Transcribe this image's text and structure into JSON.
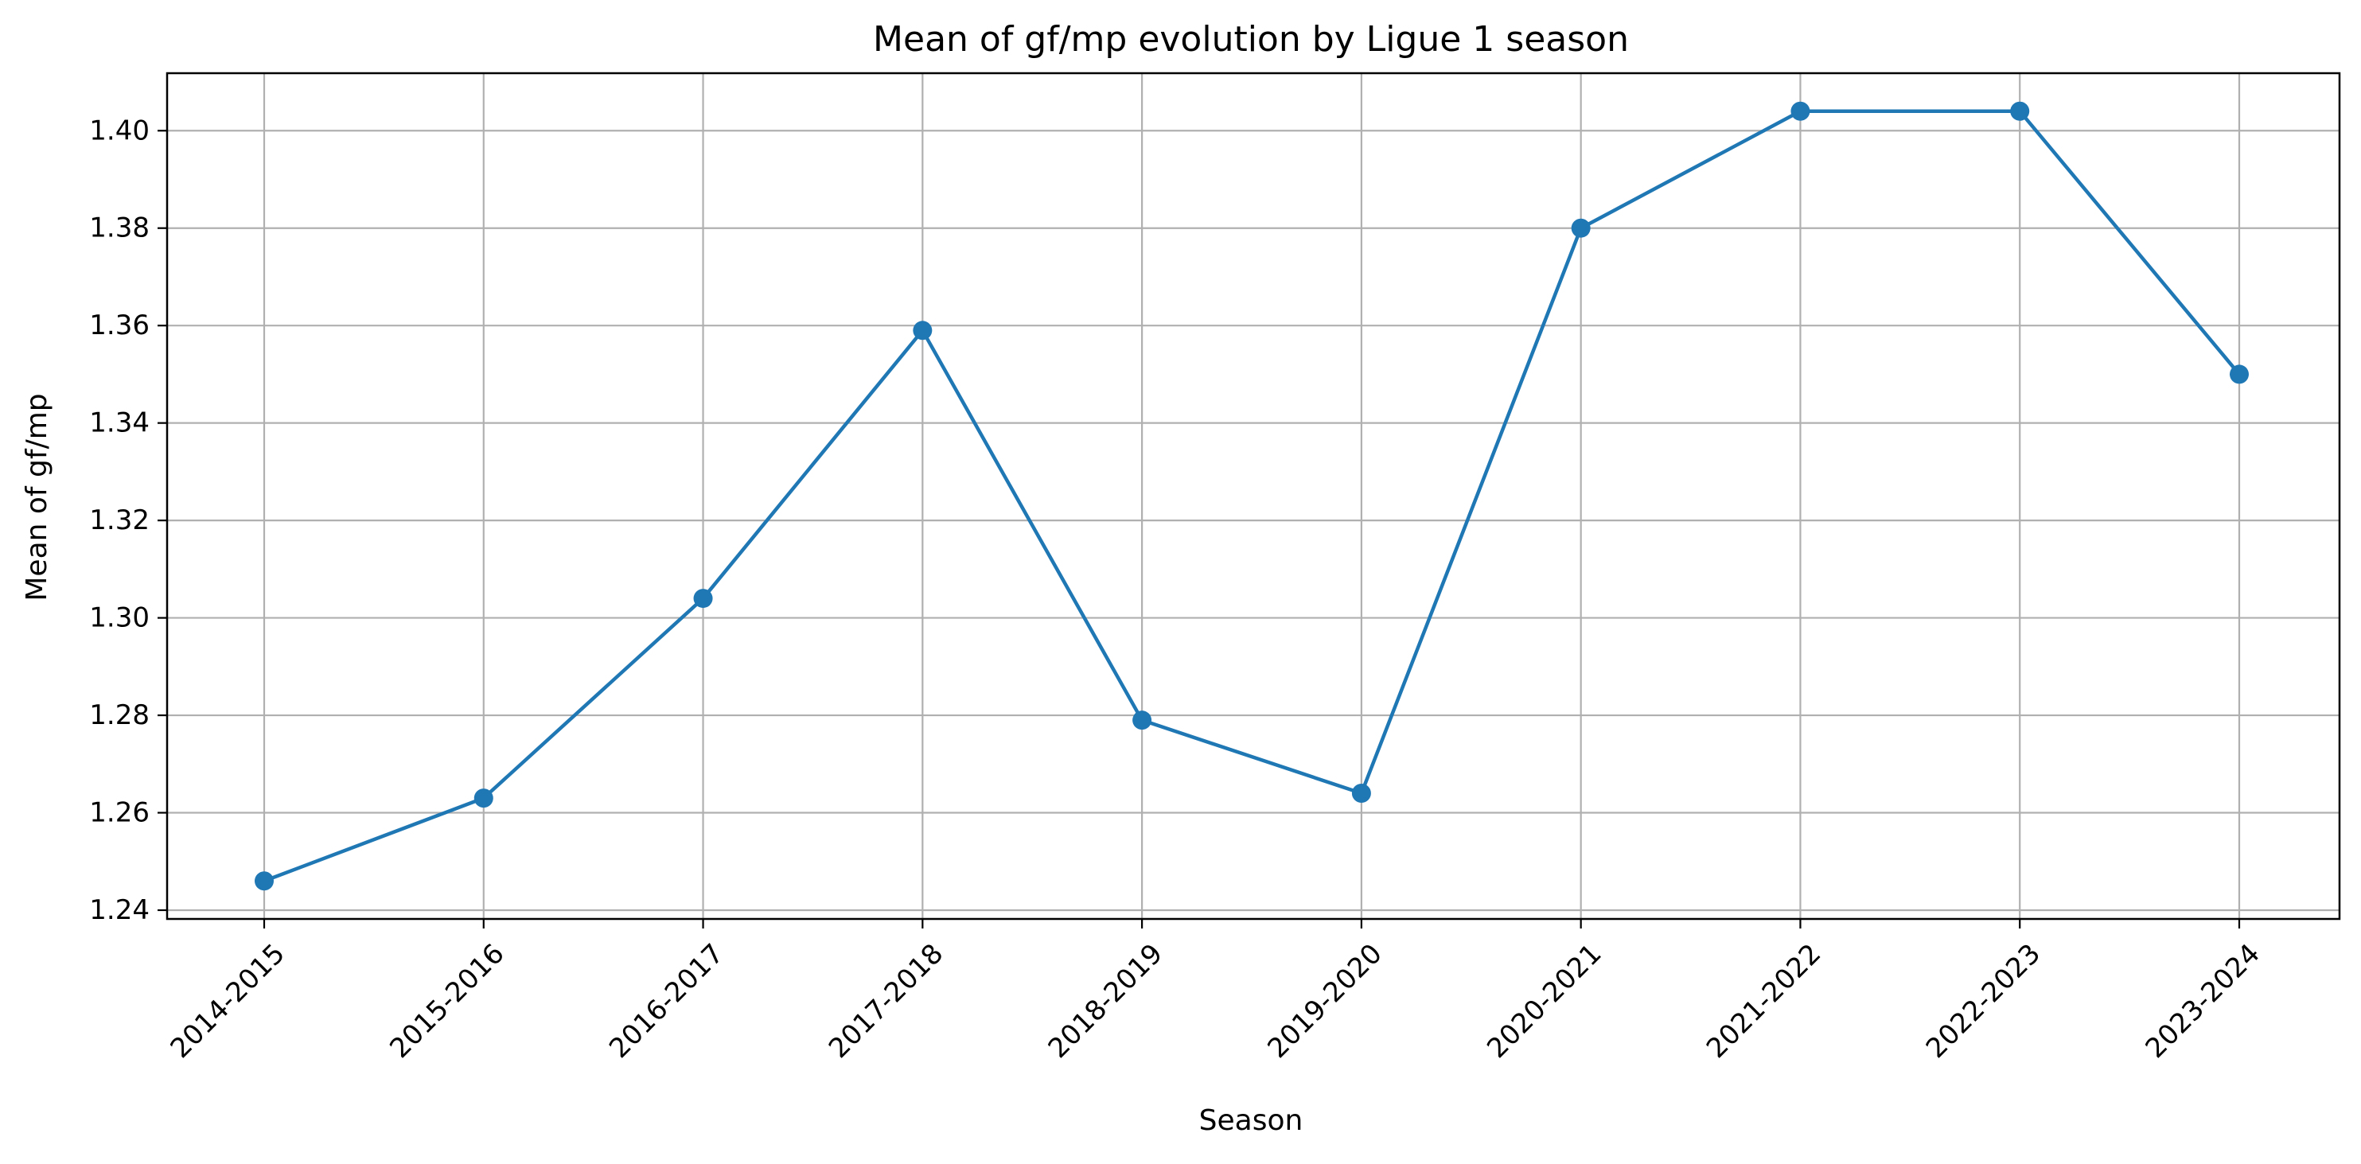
{
  "chart_data": {
    "type": "line",
    "title": "Mean of gf/mp evolution by Ligue 1 season",
    "xlabel": "Season",
    "ylabel": "Mean of gf/mp",
    "categories": [
      "2014-2015",
      "2015-2016",
      "2016-2017",
      "2017-2018",
      "2018-2019",
      "2019-2020",
      "2020-2021",
      "2021-2022",
      "2022-2023",
      "2023-2024"
    ],
    "values": [
      1.246,
      1.263,
      1.304,
      1.359,
      1.279,
      1.264,
      1.38,
      1.404,
      1.404,
      1.35
    ],
    "y_ticks": [
      "1.24",
      "1.26",
      "1.28",
      "1.30",
      "1.32",
      "1.34",
      "1.36",
      "1.38",
      "1.40"
    ],
    "ylim": [
      1.2382,
      1.4118
    ],
    "grid": true,
    "legend": "none",
    "colors": {
      "line": "#1f77b4",
      "grid": "#b0b0b0",
      "axes": "#000000"
    }
  }
}
